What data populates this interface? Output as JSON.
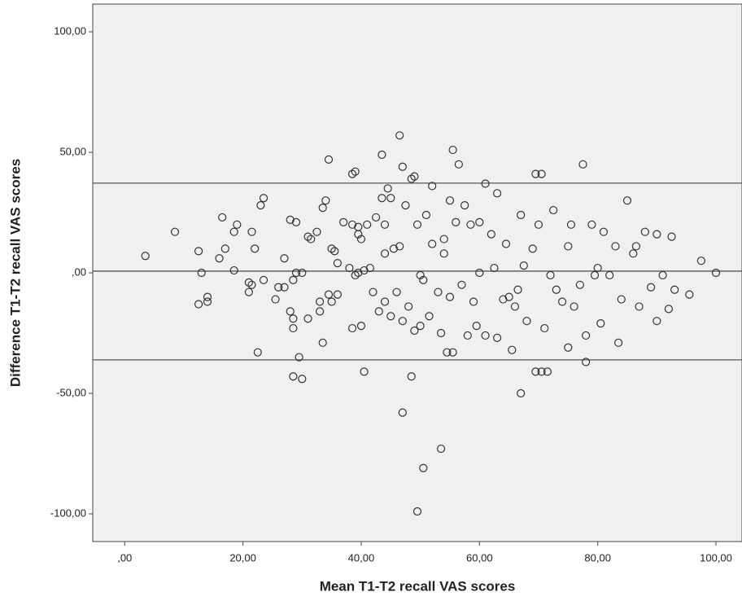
{
  "chart_data": {
    "type": "scatter",
    "x_label": "Mean T1-T2 recall VAS scores",
    "y_label": "Difference T1-T2 recall VAS scores",
    "xlim": [
      -5.4,
      104.4
    ],
    "ylim": [
      -111.5,
      111.5
    ],
    "xticks": [
      {
        "value": 0,
        "label": ",00"
      },
      {
        "value": 20,
        "label": "20,00"
      },
      {
        "value": 40,
        "label": "40,00"
      },
      {
        "value": 60,
        "label": "60,00"
      },
      {
        "value": 80,
        "label": "80,00"
      },
      {
        "value": 100,
        "label": "100,00"
      }
    ],
    "yticks": [
      {
        "value": 100,
        "label": "100,00"
      },
      {
        "value": 50,
        "label": "50,00"
      },
      {
        "value": 0,
        "label": ",00"
      },
      {
        "value": -50,
        "label": "-50,00"
      },
      {
        "value": -100,
        "label": "-100,00"
      }
    ],
    "reference_lines": [
      37.2,
      0.7,
      -36.1
    ],
    "color": "#333333",
    "background": "#f0f0f0",
    "x": [
      3.5,
      8.5,
      12.5,
      12.5,
      13,
      14,
      14,
      16,
      16.5,
      17,
      18.5,
      18.5,
      19,
      21,
      21,
      21.5,
      21.5,
      22,
      22.5,
      23,
      23.5,
      23.5,
      25.5,
      26,
      27,
      27,
      28,
      28,
      28.5,
      28.5,
      28.5,
      28.5,
      29,
      29,
      29.5,
      30,
      30,
      31,
      31,
      31.5,
      32.5,
      33,
      33,
      33.5,
      33.5,
      34,
      34.5,
      34.5,
      35,
      35,
      35.5,
      36,
      36,
      37,
      38,
      38.5,
      38.5,
      38.5,
      39,
      39,
      39.5,
      39.5,
      39.5,
      40,
      40,
      40.5,
      40.5,
      41,
      41.5,
      42,
      42.5,
      43,
      43.5,
      43.5,
      44,
      44,
      44,
      44.5,
      45,
      45,
      45.5,
      46,
      46.5,
      46.5,
      47,
      47,
      47,
      47.5,
      48,
      48.5,
      48.5,
      49,
      49,
      49.5,
      49.5,
      50,
      50,
      50.5,
      50.5,
      51,
      51.5,
      52,
      52,
      53,
      53.5,
      53.5,
      54,
      54,
      54.5,
      55,
      55,
      55.5,
      55.5,
      56,
      56.5,
      57,
      57.5,
      58,
      58.5,
      59,
      59.5,
      60,
      60,
      61,
      61,
      62,
      62.5,
      63,
      63,
      64,
      64.5,
      65,
      65.5,
      66,
      66.5,
      67,
      67,
      67.5,
      68,
      69,
      69.5,
      69.5,
      70,
      70.5,
      70.5,
      71,
      71.5,
      72,
      72.5,
      73,
      74,
      75,
      75,
      75.5,
      76,
      77,
      77.5,
      78,
      78,
      79,
      79.5,
      80,
      80.5,
      81,
      82,
      83,
      83.5,
      84,
      85,
      86,
      86.5,
      87,
      88,
      89,
      90,
      90,
      91,
      92,
      92.5,
      93,
      95.5,
      97.5,
      100
    ],
    "y": [
      7,
      17,
      9,
      -13,
      0,
      -10,
      -12,
      6,
      23,
      10,
      17,
      1,
      20,
      -4,
      -8,
      17,
      -5,
      10,
      -33,
      28,
      31,
      -3,
      -11,
      -6,
      6,
      -6,
      22,
      -16,
      -3,
      -19,
      -23,
      -43,
      21,
      0,
      -35,
      -44,
      0,
      -19,
      15,
      14,
      17,
      -12,
      -16,
      27,
      -29,
      30,
      47,
      -9,
      10,
      -12,
      9,
      4,
      -9,
      21,
      2,
      20,
      -23,
      41,
      42,
      -1,
      19,
      16,
      0,
      -22,
      14,
      1,
      -41,
      20,
      2,
      -8,
      23,
      -16,
      49,
      31,
      8,
      20,
      -12,
      35,
      31,
      -18,
      10,
      -8,
      57,
      11,
      44,
      -20,
      -58,
      28,
      -14,
      -43,
      39,
      40,
      -24,
      -99,
      20,
      -22,
      -1,
      -81,
      -3,
      24,
      -18,
      36,
      12,
      -8,
      -73,
      -25,
      8,
      14,
      -33,
      30,
      -10,
      51,
      -33,
      21,
      45,
      -5,
      28,
      -26,
      20,
      -12,
      -22,
      21,
      0,
      37,
      -26,
      16,
      2,
      33,
      -27,
      -11,
      12,
      -10,
      -32,
      -14,
      -7,
      -50,
      24,
      3,
      -20,
      10,
      41,
      -41,
      20,
      41,
      -41,
      -23,
      -41,
      -1,
      26,
      -7,
      -12,
      11,
      -31,
      20,
      -14,
      -5,
      45,
      -26,
      -37,
      20,
      -1,
      2,
      -21,
      17,
      -1,
      11,
      -29,
      -11,
      30,
      8,
      11,
      -14,
      17,
      -6,
      16,
      -20,
      -1,
      -15,
      15,
      -7,
      -9,
      5,
      0
    ]
  }
}
